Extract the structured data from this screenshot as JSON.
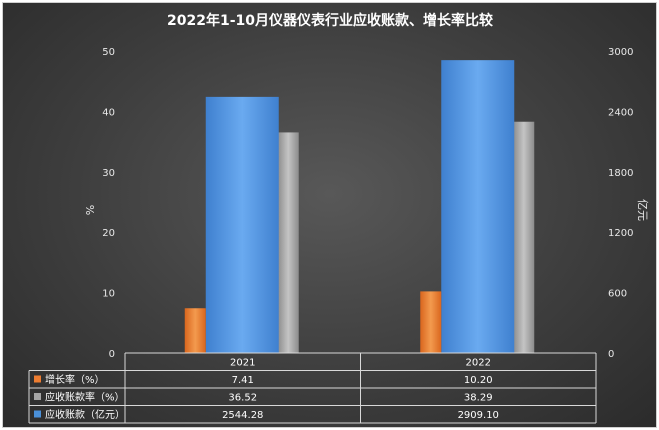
{
  "chart_data": {
    "type": "bar",
    "title": "2022年1-10月仪器仪表行业应收账款、增长率比较",
    "categories": [
      "2021",
      "2022"
    ],
    "y_left": {
      "label": "%",
      "min": 0,
      "max": 50,
      "ticks": [
        "0",
        "10",
        "20",
        "30",
        "40",
        "50"
      ]
    },
    "y_right": {
      "label": "亿元",
      "min": 0,
      "max": 3000,
      "ticks": [
        "0",
        "600",
        "1200",
        "1800",
        "2400",
        "3000"
      ]
    },
    "series": [
      {
        "name": "增长率（%）",
        "axis": "left",
        "color": "#ed7d31",
        "values": [
          7.41,
          10.2
        ],
        "labels": [
          "7.41",
          "10.20"
        ]
      },
      {
        "name": "应收账款率（%）",
        "axis": "left",
        "color": "#a5a5a5",
        "values": [
          36.52,
          38.29
        ],
        "labels": [
          "36.52",
          "38.29"
        ]
      },
      {
        "name": "应收账款（亿元）",
        "axis": "right",
        "color": "#4a90d9",
        "values": [
          2544.28,
          2909.1
        ],
        "labels": [
          "2544.28",
          "2909.10"
        ]
      }
    ],
    "data_table": true,
    "grid": false
  }
}
